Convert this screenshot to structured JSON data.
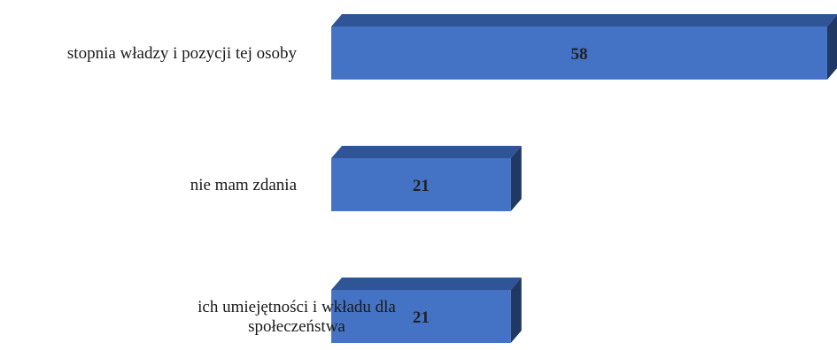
{
  "chart_data": {
    "type": "bar",
    "orientation": "horizontal",
    "style": "3d",
    "categories": [
      [
        "stopnia władzy i pozycji tej osoby"
      ],
      [
        "nie mam zdania"
      ],
      [
        "ich umiejętności i wkładu dla",
        "społeczeństwa"
      ]
    ],
    "values": [
      58,
      21,
      21
    ],
    "xlim": [
      0,
      58
    ],
    "grid": false,
    "legend": "none",
    "colors": {
      "front": "#4472c4",
      "top": "#2f5597",
      "side": "#203864"
    }
  }
}
